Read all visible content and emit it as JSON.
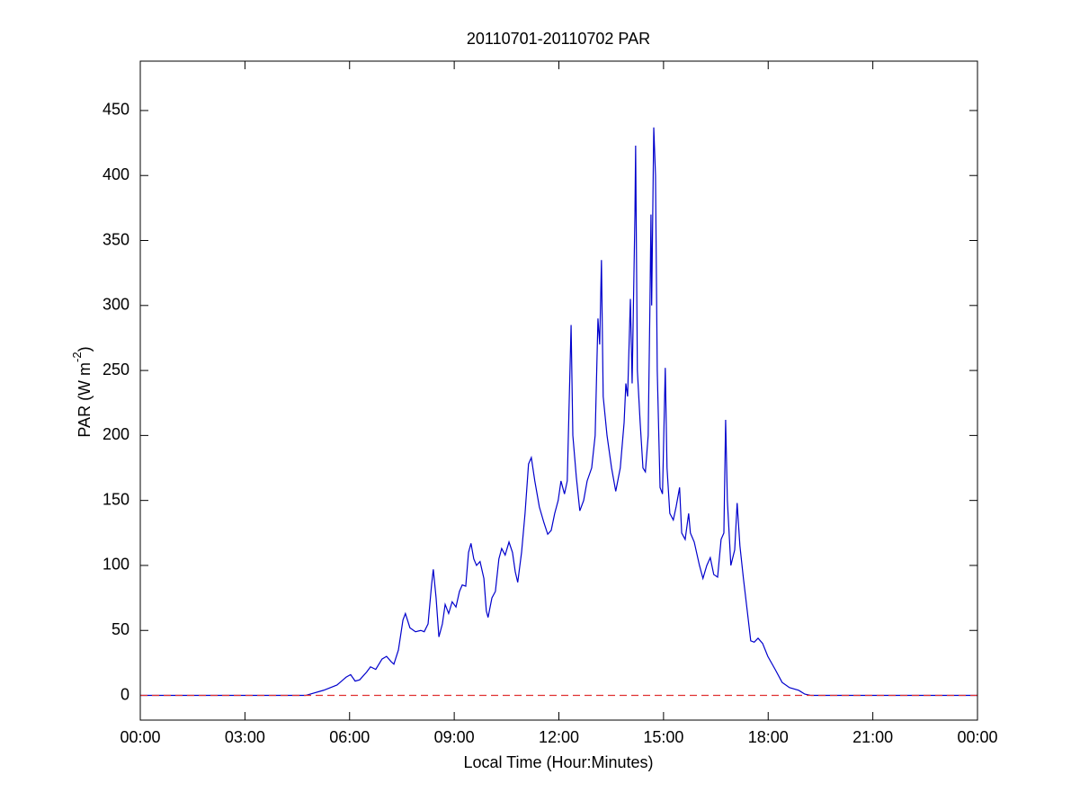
{
  "chart_data": {
    "type": "line",
    "title": "20110701-20110702 PAR",
    "xlabel": "Local Time (Hour:Minutes)",
    "ylabel": [
      "PAR (W m",
      "-2",
      ")"
    ],
    "xlim": [
      0,
      24
    ],
    "xticks": [
      {
        "value": 0,
        "label": "00:00"
      },
      {
        "value": 3,
        "label": "03:00"
      },
      {
        "value": 6,
        "label": "06:00"
      },
      {
        "value": 9,
        "label": "09:00"
      },
      {
        "value": 12,
        "label": "12:00"
      },
      {
        "value": 15,
        "label": "15:00"
      },
      {
        "value": 18,
        "label": "18:00"
      },
      {
        "value": 21,
        "label": "21:00"
      },
      {
        "value": 24,
        "label": "00:00"
      }
    ],
    "ylim": [
      -19,
      488
    ],
    "yticks": [
      0,
      50,
      100,
      150,
      200,
      250,
      300,
      350,
      400,
      450
    ],
    "grid": false,
    "reference_line": {
      "value": 0,
      "color": "#e03030",
      "dashed": true
    },
    "x": [
      0,
      4.74,
      5.26,
      5.64,
      5.9,
      6.03,
      6.16,
      6.29,
      6.49,
      6.6,
      6.75,
      6.93,
      7.06,
      7.19,
      7.27,
      7.4,
      7.53,
      7.6,
      7.73,
      7.89,
      8.04,
      8.14,
      8.25,
      8.35,
      8.4,
      8.48,
      8.56,
      8.66,
      8.74,
      8.84,
      8.94,
      9.05,
      9.15,
      9.23,
      9.33,
      9.41,
      9.48,
      9.56,
      9.64,
      9.74,
      9.85,
      9.92,
      9.97,
      10.08,
      10.18,
      10.28,
      10.36,
      10.46,
      10.57,
      10.67,
      10.75,
      10.82,
      10.93,
      11.03,
      11.13,
      11.21,
      11.31,
      11.44,
      11.57,
      11.68,
      11.78,
      11.88,
      11.98,
      12.06,
      12.16,
      12.24,
      12.29,
      12.35,
      12.4,
      12.5,
      12.6,
      12.71,
      12.81,
      12.94,
      13.04,
      13.12,
      13.17,
      13.22,
      13.27,
      13.38,
      13.51,
      13.63,
      13.76,
      13.87,
      13.92,
      13.97,
      14.05,
      14.1,
      14.18,
      14.2,
      14.25,
      14.33,
      14.41,
      14.48,
      14.56,
      14.61,
      14.64,
      14.66,
      14.72,
      14.77,
      14.82,
      14.9,
      14.97,
      15.05,
      15.1,
      15.18,
      15.28,
      15.36,
      15.46,
      15.52,
      15.62,
      15.72,
      15.77,
      15.88,
      16.03,
      16.13,
      16.24,
      16.34,
      16.44,
      16.55,
      16.65,
      16.73,
      16.78,
      16.83,
      16.93,
      17.04,
      17.11,
      17.19,
      17.29,
      17.4,
      17.5,
      17.6,
      17.71,
      17.84,
      17.99,
      18.2,
      18.4,
      18.61,
      18.87,
      19.05,
      19.23,
      24
    ],
    "series": [
      {
        "name": "PAR",
        "color": "#0000cc",
        "values": [
          0,
          0,
          4,
          8,
          14,
          16,
          11,
          12,
          18,
          22,
          20,
          28,
          30,
          26,
          24,
          35,
          58,
          63,
          52,
          49,
          50,
          49,
          55,
          85,
          97,
          75,
          45,
          55,
          70,
          63,
          72,
          68,
          80,
          85,
          84,
          110,
          117,
          105,
          100,
          103,
          90,
          65,
          60,
          75,
          80,
          105,
          113,
          108,
          118,
          110,
          95,
          87,
          110,
          140,
          178,
          183,
          165,
          145,
          133,
          124,
          127,
          140,
          150,
          165,
          155,
          165,
          220,
          285,
          200,
          168,
          142,
          150,
          165,
          175,
          200,
          290,
          270,
          335,
          230,
          200,
          175,
          157,
          175,
          210,
          240,
          230,
          305,
          240,
          370,
          423,
          250,
          210,
          175,
          172,
          200,
          300,
          370,
          300,
          437,
          400,
          250,
          160,
          155,
          252,
          175,
          140,
          135,
          145,
          160,
          125,
          120,
          140,
          125,
          118,
          100,
          90,
          100,
          106,
          93,
          91,
          120,
          125,
          212,
          150,
          100,
          112,
          148,
          115,
          90,
          65,
          42,
          41,
          44,
          40,
          30,
          20,
          10,
          6,
          4,
          1,
          0,
          0
        ]
      }
    ]
  }
}
